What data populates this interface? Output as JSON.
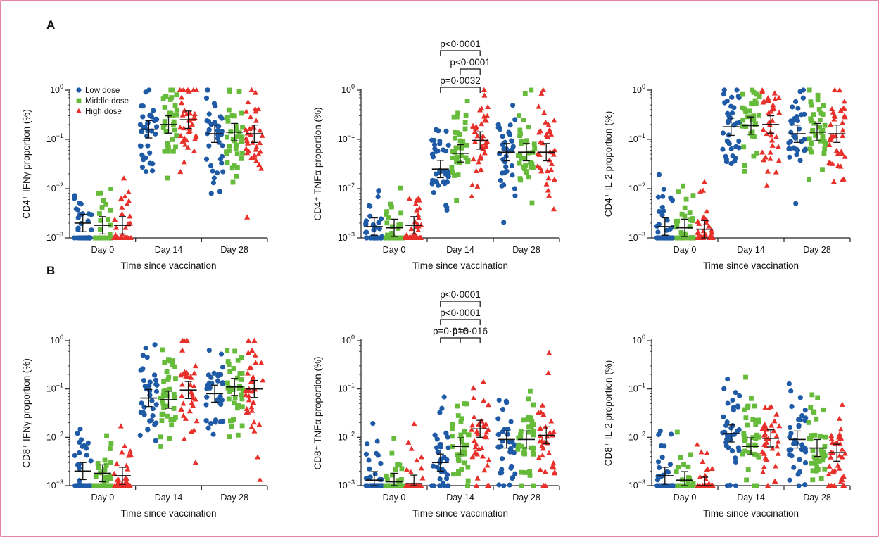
{
  "panel_labels": [
    "A",
    "B"
  ],
  "legend": [
    {
      "label": "Low dose",
      "color": "#1f5aa6",
      "shape": "circle"
    },
    {
      "label": "Middle dose",
      "color": "#66bb3a",
      "shape": "square"
    },
    {
      "label": "High dose",
      "color": "#e8302a",
      "shape": "triangle"
    }
  ],
  "x_axis_label": "Time since vaccination",
  "chart_data": [
    {
      "type": "scatter",
      "panel": "A",
      "ylabel": "CD4⁺ IFNγ proportion (%)",
      "yscale": "log",
      "ylim": [
        0.001,
        1
      ],
      "categories": [
        "Day 0",
        "Day 14",
        "Day 28"
      ],
      "medians": {
        "Low dose": [
          0.002,
          0.16,
          0.13
        ],
        "Middle dose": [
          0.0018,
          0.2,
          0.14
        ],
        "High dose": [
          0.0018,
          0.25,
          0.13
        ]
      },
      "annotations": []
    },
    {
      "type": "scatter",
      "panel": "A",
      "ylabel": "CD4⁺ TNFα proportion (%)",
      "yscale": "log",
      "ylim": [
        0.001,
        1
      ],
      "categories": [
        "Day 0",
        "Day 14",
        "Day 28"
      ],
      "medians": {
        "Low dose": [
          0.0017,
          0.025,
          0.055
        ],
        "Middle dose": [
          0.0016,
          0.052,
          0.055
        ],
        "High dose": [
          0.0018,
          0.095,
          0.055
        ]
      },
      "annotations": [
        {
          "text": "p=0·0032",
          "from": "Day 14 Low dose",
          "to": "Day 14 High dose",
          "level": 1
        },
        {
          "text": "p<0·0001",
          "from": "Day 14 Middle dose",
          "to": "Day 14 High dose",
          "level": 2
        },
        {
          "text": "p<0·0001",
          "from": "Day 14 Low dose",
          "to": "Day 14 High dose",
          "level": 3
        }
      ]
    },
    {
      "type": "scatter",
      "panel": "A",
      "ylabel": "CD4⁺ IL-2 proportion (%)",
      "yscale": "log",
      "ylim": [
        0.001,
        1
      ],
      "categories": [
        "Day 0",
        "Day 14",
        "Day 28"
      ],
      "medians": {
        "Low dose": [
          0.0017,
          0.18,
          0.13
        ],
        "Middle dose": [
          0.0016,
          0.19,
          0.14
        ],
        "High dose": [
          0.0015,
          0.2,
          0.13
        ]
      },
      "annotations": []
    },
    {
      "type": "scatter",
      "panel": "B",
      "ylabel": "CD8⁺ IFNγ proportion (%)",
      "yscale": "log",
      "ylim": [
        0.001,
        1
      ],
      "categories": [
        "Day 0",
        "Day 14",
        "Day 28"
      ],
      "medians": {
        "Low dose": [
          0.002,
          0.065,
          0.08
        ],
        "Middle dose": [
          0.0018,
          0.06,
          0.11
        ],
        "High dose": [
          0.0016,
          0.095,
          0.1
        ]
      },
      "annotations": []
    },
    {
      "type": "scatter",
      "panel": "B",
      "ylabel": "CD8⁺ TNFα proportion (%)",
      "yscale": "log",
      "ylim": [
        0.001,
        1
      ],
      "categories": [
        "Day 0",
        "Day 14",
        "Day 28"
      ],
      "medians": {
        "Low dose": [
          0.0013,
          0.003,
          0.009
        ],
        "Middle dose": [
          0.0012,
          0.0065,
          0.009
        ],
        "High dose": [
          0.0011,
          0.015,
          0.011
        ]
      },
      "annotations": [
        {
          "text": "p=0·016",
          "from": "Day 14 Low dose",
          "to": "Day 14 Middle dose",
          "level": 1
        },
        {
          "text": "p=0·016",
          "from": "Day 14 Middle dose",
          "to": "Day 14 High dose",
          "level": 1
        },
        {
          "text": "p<0·0001",
          "from": "Day 14 Low dose",
          "to": "Day 14 High dose",
          "level": 2
        },
        {
          "text": "p<0·0001",
          "from": "Day 14 Low dose",
          "to": "Day 14 High dose",
          "level": 3
        }
      ]
    },
    {
      "type": "scatter",
      "panel": "B",
      "ylabel": "CD8⁺ IL-2 proportion (%)",
      "yscale": "log",
      "ylim": [
        0.001,
        1
      ],
      "categories": [
        "Day 0",
        "Day 14",
        "Day 28"
      ],
      "medians": {
        "Low dose": [
          0.0016,
          0.012,
          0.009
        ],
        "Middle dose": [
          0.0013,
          0.0065,
          0.006
        ],
        "High dose": [
          0.001,
          0.0095,
          0.0048
        ]
      },
      "annotations": []
    }
  ]
}
